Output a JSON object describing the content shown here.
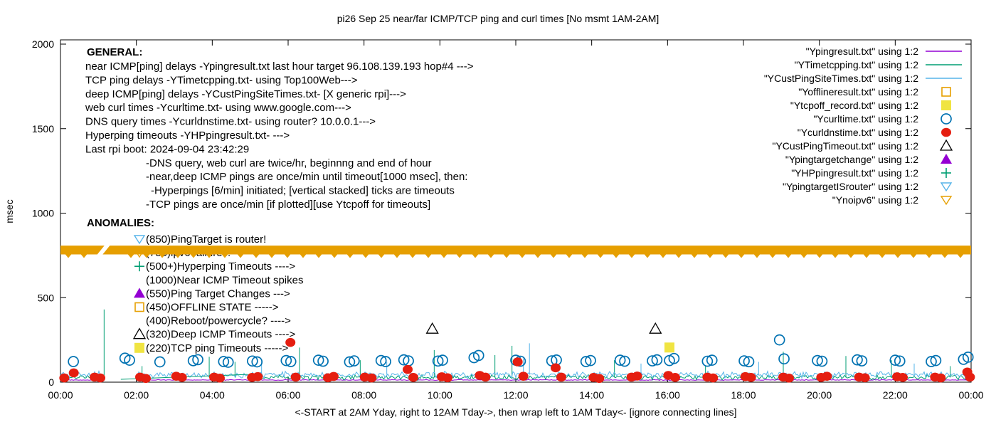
{
  "title": "pi26 Sep 25  near/far ICMP/TCP ping and curl times [No msmt 1AM-2AM]",
  "axes": {
    "ylabel": "msec",
    "xlabel": "<-START at 2AM Yday, right to 12AM Tday->, then wrap left to 1AM Tday<- [ignore connecting lines]",
    "x_ticks": [
      "00:00",
      "02:00",
      "04:00",
      "06:00",
      "08:00",
      "10:00",
      "12:00",
      "14:00",
      "16:00",
      "18:00",
      "20:00",
      "22:00",
      "00:00"
    ],
    "y_ticks": [
      "0",
      "500",
      "1000",
      "1500",
      "2000"
    ]
  },
  "legend": {
    "items": [
      {
        "label": "\"Ypingresult.txt\" using 1:2",
        "sample": "line",
        "color": "#9400D3"
      },
      {
        "label": "\"YTimetcpping.txt\" using 1:2",
        "sample": "line",
        "color": "#009E73"
      },
      {
        "label": "\"YCustPingSiteTimes.txt\" using 1:2",
        "sample": "line",
        "color": "#56B4E9"
      },
      {
        "label": "\"Yofflineresult.txt\" using 1:2",
        "sample": "square-open",
        "color": "#E69F00"
      },
      {
        "label": "\"Ytcpoff_record.txt\" using 1:2",
        "sample": "square-filled",
        "color": "#F0E442"
      },
      {
        "label": "\"Ycurltime.txt\" using 1:2",
        "sample": "circle-open",
        "color": "#0072B2"
      },
      {
        "label": "\"Ycurldnstime.txt\" using 1:2",
        "sample": "circle-filled",
        "color": "#E51E10"
      },
      {
        "label": "\"YCustPingTimeout.txt\" using 1:2",
        "sample": "triangle-up-open",
        "color": "#000000"
      },
      {
        "label": "\"Ypingtargetchange\" using 1:2",
        "sample": "triangle-up-filled",
        "color": "#9400D3"
      },
      {
        "label": "\"YHPpingresult.txt\" using 1:2",
        "sample": "plus",
        "color": "#009E73"
      },
      {
        "label": "\"YpingtargetISrouter\" using 1:2",
        "sample": "triangle-down-open",
        "color": "#56B4E9"
      },
      {
        "label": "\"Ynoipv6\" using 1:2",
        "sample": "triangle-down-open",
        "color": "#E69F00"
      }
    ]
  },
  "general": {
    "heading": "GENERAL:",
    "lines": [
      {
        "text": "near ICMP[ping] delays -Ypingresult.txt last hour target 96.108.139.193 hop#4 --->",
        "indent": 0
      },
      {
        "text": "TCP ping delays -YTimetcpping.txt- using Top100Web--->",
        "indent": 0
      },
      {
        "text": "deep ICMP[ping] delays -YCustPingSiteTimes.txt- [X generic rpi]--->",
        "indent": 0
      },
      {
        "text": "web curl times -Ycurltime.txt- using www.google.com--->",
        "indent": 0
      },
      {
        "text": "DNS query times -Ycurldnstime.txt- using router? 10.0.0.1--->",
        "indent": 0
      },
      {
        "text": "Hyperping timeouts -YHPpingresult.txt- --->",
        "indent": 0
      },
      {
        "text": "Last rpi boot: 2024-09-04 23:42:29",
        "indent": 0
      },
      {
        "text": "-DNS query, web curl are twice/hr, beginnng and end of hour",
        "indent": 85
      },
      {
        "text": "-near,deep ICMP pings are once/min until timeout[1000 msec], then:",
        "indent": 85
      },
      {
        "text": "-Hyperpings [6/min] initiated; [vertical stacked] ticks are timeouts",
        "indent": 92
      },
      {
        "text": "-TCP pings are once/min [if plotted][use Ytcpoff for timeouts]",
        "indent": 85
      }
    ]
  },
  "anomalies": {
    "heading": "ANOMALIES:",
    "items": [
      {
        "text": "(850)PingTarget is router!",
        "marker": "triangle-down-open",
        "color": "#56B4E9"
      },
      {
        "text": "(785)ipv6 failures!",
        "marker": "triangle-down-open",
        "color": "#E69F00"
      },
      {
        "text": "(500+)Hyperping Timeouts ---->",
        "marker": "plus",
        "color": "#009E73"
      },
      {
        "text": "(1000)Near ICMP Timeout spikes",
        "marker": null,
        "color": null
      },
      {
        "text": "(550)Ping Target Changes --->",
        "marker": "triangle-up-filled",
        "color": "#9400D3"
      },
      {
        "text": "(450)OFFLINE STATE ----->",
        "marker": "square-open",
        "color": "#E69F00"
      },
      {
        "text": "(400)Reboot/powercycle? ---->",
        "marker": null,
        "color": null
      },
      {
        "text": "(320)Deep ICMP Timeouts ---->",
        "marker": "triangle-up-open",
        "color": "#000000"
      },
      {
        "text": "(220)TCP ping Timeouts ----->",
        "marker": "square-filled",
        "color": "#F0E442"
      }
    ]
  },
  "colors": {
    "purple": "#9400D3",
    "teal": "#009E73",
    "sky": "#56B4E9",
    "orange": "#E69F00",
    "yellow": "#F0E442",
    "blue": "#0072B2",
    "red": "#E51E10",
    "black": "#000000"
  },
  "chart_data": {
    "type": "line",
    "note": "No msmt 1AM-2AM",
    "x_range_hours": [
      0,
      24
    ],
    "y_range_ms": [
      0,
      2025
    ],
    "x_tick_labels": [
      "00:00",
      "02:00",
      "04:00",
      "06:00",
      "08:00",
      "10:00",
      "12:00",
      "14:00",
      "16:00",
      "18:00",
      "20:00",
      "22:00",
      "00:00"
    ],
    "y_tick_values": [
      0,
      500,
      1000,
      1500,
      2000
    ],
    "legend_position": "top-right-inside",
    "grid": false,
    "series": [
      {
        "name": "Ypingresult.txt",
        "type": "line",
        "color": "#9400D3",
        "baseline_ms": 13,
        "noise_ms": 2,
        "spikes": []
      },
      {
        "name": "YTimetcpping.txt",
        "type": "line",
        "color": "#009E73",
        "baseline_ms": 28,
        "noise_ms": 13,
        "spikes": [
          [
            1.15,
            430
          ],
          [
            2.15,
            95
          ],
          [
            3.92,
            150
          ],
          [
            4.6,
            120
          ],
          [
            6.3,
            205
          ],
          [
            7.9,
            130
          ],
          [
            9.85,
            190
          ],
          [
            11.45,
            160
          ],
          [
            11.9,
            215
          ],
          [
            14.6,
            130
          ],
          [
            17.0,
            95
          ],
          [
            19.05,
            180
          ],
          [
            20.7,
            155
          ],
          [
            21.9,
            130
          ],
          [
            23.45,
            95
          ]
        ]
      },
      {
        "name": "YCustPingSiteTimes.txt",
        "type": "line",
        "color": "#56B4E9",
        "baseline_ms": 44,
        "noise_ms": 16,
        "spikes": [
          [
            5.3,
            130
          ],
          [
            8.6,
            120
          ],
          [
            12.2,
            140
          ],
          [
            12.36,
            230
          ],
          [
            15.3,
            110
          ],
          [
            18.4,
            120
          ],
          [
            22.5,
            110
          ]
        ]
      },
      {
        "name": "Yofflineresult.txt",
        "type": "points",
        "marker": "square-open",
        "color": "#E69F00",
        "points": []
      },
      {
        "name": "Ytcpoff_record.txt",
        "type": "points",
        "marker": "square-filled",
        "color": "#F0E442",
        "points": [
          [
            16.05,
            205
          ]
        ]
      },
      {
        "name": "Ycurltime.txt",
        "type": "points",
        "marker": "circle-open",
        "color": "#0072B2",
        "points": [
          [
            0.34,
            122
          ],
          [
            1.7,
            142
          ],
          [
            1.82,
            130
          ],
          [
            2.62,
            120
          ],
          [
            3.5,
            127
          ],
          [
            3.62,
            133
          ],
          [
            4.3,
            122
          ],
          [
            4.42,
            118
          ],
          [
            5.06,
            125
          ],
          [
            5.18,
            120
          ],
          [
            5.95,
            128
          ],
          [
            6.07,
            122
          ],
          [
            6.8,
            130
          ],
          [
            6.92,
            124
          ],
          [
            7.62,
            120
          ],
          [
            7.74,
            126
          ],
          [
            8.45,
            128
          ],
          [
            8.57,
            122
          ],
          [
            9.05,
            132
          ],
          [
            9.17,
            126
          ],
          [
            9.95,
            125
          ],
          [
            10.07,
            130
          ],
          [
            10.9,
            145
          ],
          [
            11.02,
            158
          ],
          [
            12.0,
            130
          ],
          [
            12.12,
            124
          ],
          [
            12.95,
            126
          ],
          [
            13.07,
            131
          ],
          [
            13.85,
            122
          ],
          [
            13.97,
            128
          ],
          [
            14.75,
            130
          ],
          [
            14.87,
            124
          ],
          [
            15.6,
            126
          ],
          [
            15.72,
            132
          ],
          [
            16.05,
            128
          ],
          [
            16.17,
            140
          ],
          [
            17.05,
            124
          ],
          [
            17.17,
            130
          ],
          [
            18.02,
            126
          ],
          [
            18.14,
            121
          ],
          [
            18.95,
            250
          ],
          [
            19.07,
            138
          ],
          [
            19.95,
            128
          ],
          [
            20.07,
            124
          ],
          [
            21.0,
            132
          ],
          [
            21.12,
            126
          ],
          [
            22.0,
            130
          ],
          [
            22.12,
            125
          ],
          [
            22.95,
            122
          ],
          [
            23.07,
            128
          ],
          [
            23.8,
            135
          ],
          [
            23.92,
            148
          ]
        ]
      },
      {
        "name": "Ycurldnstime.txt",
        "type": "points",
        "marker": "circle-filled",
        "color": "#E51E10",
        "points": [
          [
            0.1,
            25
          ],
          [
            0.35,
            55
          ],
          [
            0.9,
            30
          ],
          [
            1.05,
            25
          ],
          [
            2.1,
            30
          ],
          [
            2.25,
            22
          ],
          [
            3.05,
            35
          ],
          [
            3.2,
            28
          ],
          [
            4.05,
            30
          ],
          [
            4.2,
            24
          ],
          [
            5.05,
            28
          ],
          [
            5.2,
            33
          ],
          [
            6.06,
            235
          ],
          [
            6.2,
            30
          ],
          [
            7.05,
            26
          ],
          [
            7.2,
            34
          ],
          [
            8.02,
            30
          ],
          [
            8.2,
            25
          ],
          [
            9.15,
            75
          ],
          [
            9.3,
            28
          ],
          [
            10.05,
            32
          ],
          [
            10.2,
            26
          ],
          [
            11.05,
            40
          ],
          [
            11.2,
            30
          ],
          [
            12.05,
            120
          ],
          [
            12.2,
            35
          ],
          [
            13.05,
            85
          ],
          [
            13.2,
            30
          ],
          [
            14.05,
            28
          ],
          [
            14.2,
            22
          ],
          [
            15.05,
            30
          ],
          [
            15.2,
            36
          ],
          [
            16.02,
            40
          ],
          [
            16.2,
            28
          ],
          [
            17.05,
            30
          ],
          [
            17.2,
            25
          ],
          [
            18.05,
            33
          ],
          [
            18.2,
            28
          ],
          [
            19.05,
            30
          ],
          [
            19.2,
            24
          ],
          [
            20.05,
            28
          ],
          [
            20.2,
            35
          ],
          [
            21.05,
            30
          ],
          [
            21.2,
            26
          ],
          [
            22.05,
            32
          ],
          [
            22.2,
            28
          ],
          [
            23.05,
            30
          ],
          [
            23.2,
            25
          ],
          [
            23.9,
            60
          ],
          [
            23.97,
            30
          ]
        ]
      },
      {
        "name": "YCustPingTimeout.txt",
        "type": "points",
        "marker": "triangle-up-open",
        "color": "#000000",
        "points": [
          [
            9.8,
            315
          ],
          [
            15.68,
            315
          ]
        ]
      },
      {
        "name": "Ypingtargetchange",
        "type": "points",
        "marker": "triangle-up-filled",
        "color": "#9400D3",
        "points": []
      },
      {
        "name": "YHPpingresult.txt",
        "type": "points",
        "marker": "plus",
        "color": "#009E73",
        "points": []
      },
      {
        "name": "YpingtargetISrouter",
        "type": "points",
        "marker": "triangle-down-open",
        "color": "#56B4E9",
        "points": []
      },
      {
        "name": "Ynoipv6",
        "type": "band",
        "marker": "triangle-down-open",
        "color": "#E69F00",
        "band_ms": 782,
        "band_halfwidth_ms": 26,
        "gap_hours": [
          0.97,
          1.3
        ]
      }
    ],
    "connector": {
      "from": [
        1.59,
        17
      ],
      "to": [
        4.93,
        46
      ],
      "color": "#009E73"
    }
  }
}
